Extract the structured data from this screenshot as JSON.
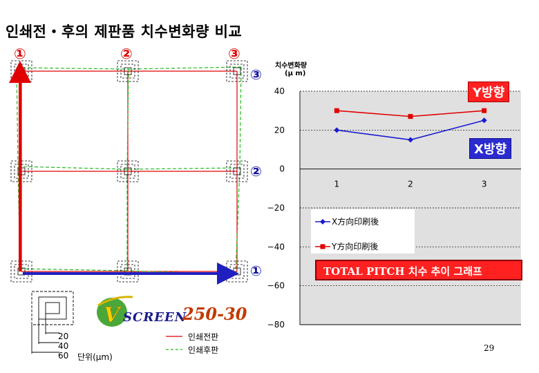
{
  "page": {
    "title": "인쇄전・후의 제판품 치수변화량 비교",
    "page_number": "29"
  },
  "grid": {
    "column_labels": [
      "①",
      "②",
      "③"
    ],
    "row_labels": [
      "③",
      "②",
      "①"
    ],
    "colors": {
      "before": "#e00000",
      "after": "#22bb22",
      "arrow_y": "#e00000",
      "arrow_x": "#2020c0"
    }
  },
  "legend": {
    "lines": [
      {
        "label": "인쇄전판",
        "color": "#e00000",
        "style": "solid"
      },
      {
        "label": "인쇄후판",
        "color": "#22bb22",
        "style": "dashed"
      }
    ],
    "marker_sizes": [
      "20",
      "40",
      "60"
    ],
    "unit": "단위(μm)"
  },
  "logo": {
    "text": "SCREEN",
    "model": "250-30"
  },
  "chart_data": {
    "type": "line",
    "ylabel": "치수변화량",
    "yunit": "(μ m)",
    "categories": [
      "1",
      "2",
      "3"
    ],
    "ylim": [
      -80,
      40
    ],
    "yticks": [
      40,
      20,
      0,
      -20,
      -40,
      -60,
      -80
    ],
    "grid": true,
    "legend_position": "left",
    "series": [
      {
        "name": "X方向印刷後",
        "values": [
          20,
          15,
          25
        ],
        "color": "#1a1ad0",
        "marker": "diamond"
      },
      {
        "name": "Y方向印刷後",
        "values": [
          30,
          27,
          30
        ],
        "color": "#e00000",
        "marker": "square"
      }
    ],
    "callouts": {
      "y_tag": "Y방향",
      "x_tag": "X방향",
      "caption": "TOTAL PITCH 치수 추이 그래프"
    }
  }
}
